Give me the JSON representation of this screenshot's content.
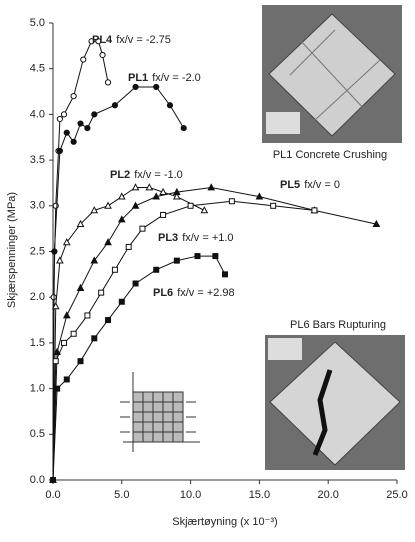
{
  "chart_data": {
    "type": "line",
    "y_label": "Skjærspenninger (MPa)",
    "x_label": "Skjærtøyning (x 10⁻³)",
    "xlim": [
      0,
      25
    ],
    "ylim": [
      0,
      5
    ],
    "xticks": [
      {
        "value": 0,
        "label": "0.0"
      },
      {
        "value": 5,
        "label": "5.0"
      },
      {
        "value": 10,
        "label": "10.0"
      },
      {
        "value": 15,
        "label": "15.0"
      },
      {
        "value": 20,
        "label": "20.0"
      },
      {
        "value": 25,
        "label": "25.0"
      }
    ],
    "yticks": [
      {
        "value": 0,
        "label": "0.0"
      },
      {
        "value": 0.5,
        "label": "0.5"
      },
      {
        "value": 1,
        "label": "1.0"
      },
      {
        "value": 1.5,
        "label": "1.5"
      },
      {
        "value": 2,
        "label": "2.0"
      },
      {
        "value": 2.5,
        "label": "2.5"
      },
      {
        "value": 3,
        "label": "3.0"
      },
      {
        "value": 3.5,
        "label": "3.5"
      },
      {
        "value": 4,
        "label": "4.0"
      },
      {
        "value": 4.5,
        "label": "4.5"
      },
      {
        "value": 5,
        "label": "5.0"
      }
    ],
    "color": "#111111",
    "series": [
      {
        "name": "PL4",
        "ratio": "fx/v = -2.75",
        "marker": "circle-open",
        "x": [
          0,
          0.05,
          0.2,
          0.4,
          0.5,
          0.8,
          1.5,
          2.2,
          2.8,
          3.3,
          3.6,
          4.0
        ],
        "values": [
          0,
          2.0,
          3.0,
          3.6,
          3.95,
          4.0,
          4.2,
          4.6,
          4.8,
          4.8,
          4.65,
          4.35
        ]
      },
      {
        "name": "PL1",
        "ratio": "fx/v = -2.0",
        "marker": "circle-filled",
        "x": [
          0,
          0.1,
          0.5,
          1.0,
          1.5,
          2.0,
          2.5,
          3.0,
          4.5,
          6.0,
          7.5,
          8.5,
          9.5
        ],
        "values": [
          0,
          2.5,
          3.6,
          3.8,
          3.7,
          3.9,
          3.85,
          4.0,
          4.1,
          4.3,
          4.3,
          4.1,
          3.85
        ]
      },
      {
        "name": "PL2",
        "ratio": "fx/v = -1.0",
        "marker": "triangle-open",
        "x": [
          0,
          0.2,
          0.5,
          1.0,
          2.0,
          3.0,
          4.0,
          5.0,
          6.0,
          7.0,
          8.0,
          9.0,
          11.0
        ],
        "values": [
          0,
          1.9,
          2.4,
          2.6,
          2.8,
          2.95,
          3.0,
          3.1,
          3.2,
          3.2,
          3.15,
          3.1,
          2.95
        ]
      },
      {
        "name": "PL5",
        "ratio": "fx/v = 0",
        "marker": "triangle-filled",
        "x": [
          0,
          0.3,
          1.0,
          2.0,
          3.0,
          4.0,
          5.0,
          6.0,
          7.5,
          9.0,
          11.5,
          15.0,
          19.0,
          23.5
        ],
        "values": [
          0,
          1.4,
          1.8,
          2.1,
          2.4,
          2.6,
          2.85,
          3.0,
          3.1,
          3.15,
          3.2,
          3.1,
          2.95,
          2.8
        ]
      },
      {
        "name": "PL3",
        "ratio": "fx/v = +1.0",
        "marker": "square-open",
        "x": [
          0,
          0.2,
          0.8,
          1.5,
          2.5,
          3.5,
          4.5,
          5.5,
          6.5,
          8.0,
          10.0,
          13.0,
          16.0,
          19.0
        ],
        "values": [
          0,
          1.3,
          1.5,
          1.6,
          1.8,
          2.05,
          2.3,
          2.55,
          2.75,
          2.9,
          3.0,
          3.05,
          3.0,
          2.95
        ]
      },
      {
        "name": "PL6",
        "ratio": "fx/v = +2.98",
        "marker": "square-filled",
        "x": [
          0,
          0.3,
          1.0,
          2.0,
          3.0,
          4.0,
          5.0,
          6.0,
          7.5,
          9.0,
          10.5,
          11.8,
          12.5
        ],
        "values": [
          0,
          1.0,
          1.1,
          1.3,
          1.55,
          1.75,
          1.95,
          2.15,
          2.3,
          2.4,
          2.45,
          2.45,
          2.25
        ]
      }
    ],
    "photos": [
      {
        "caption": "PL1 Concrete Crushing"
      },
      {
        "caption": "PL6 Bars Rupturing"
      }
    ]
  }
}
